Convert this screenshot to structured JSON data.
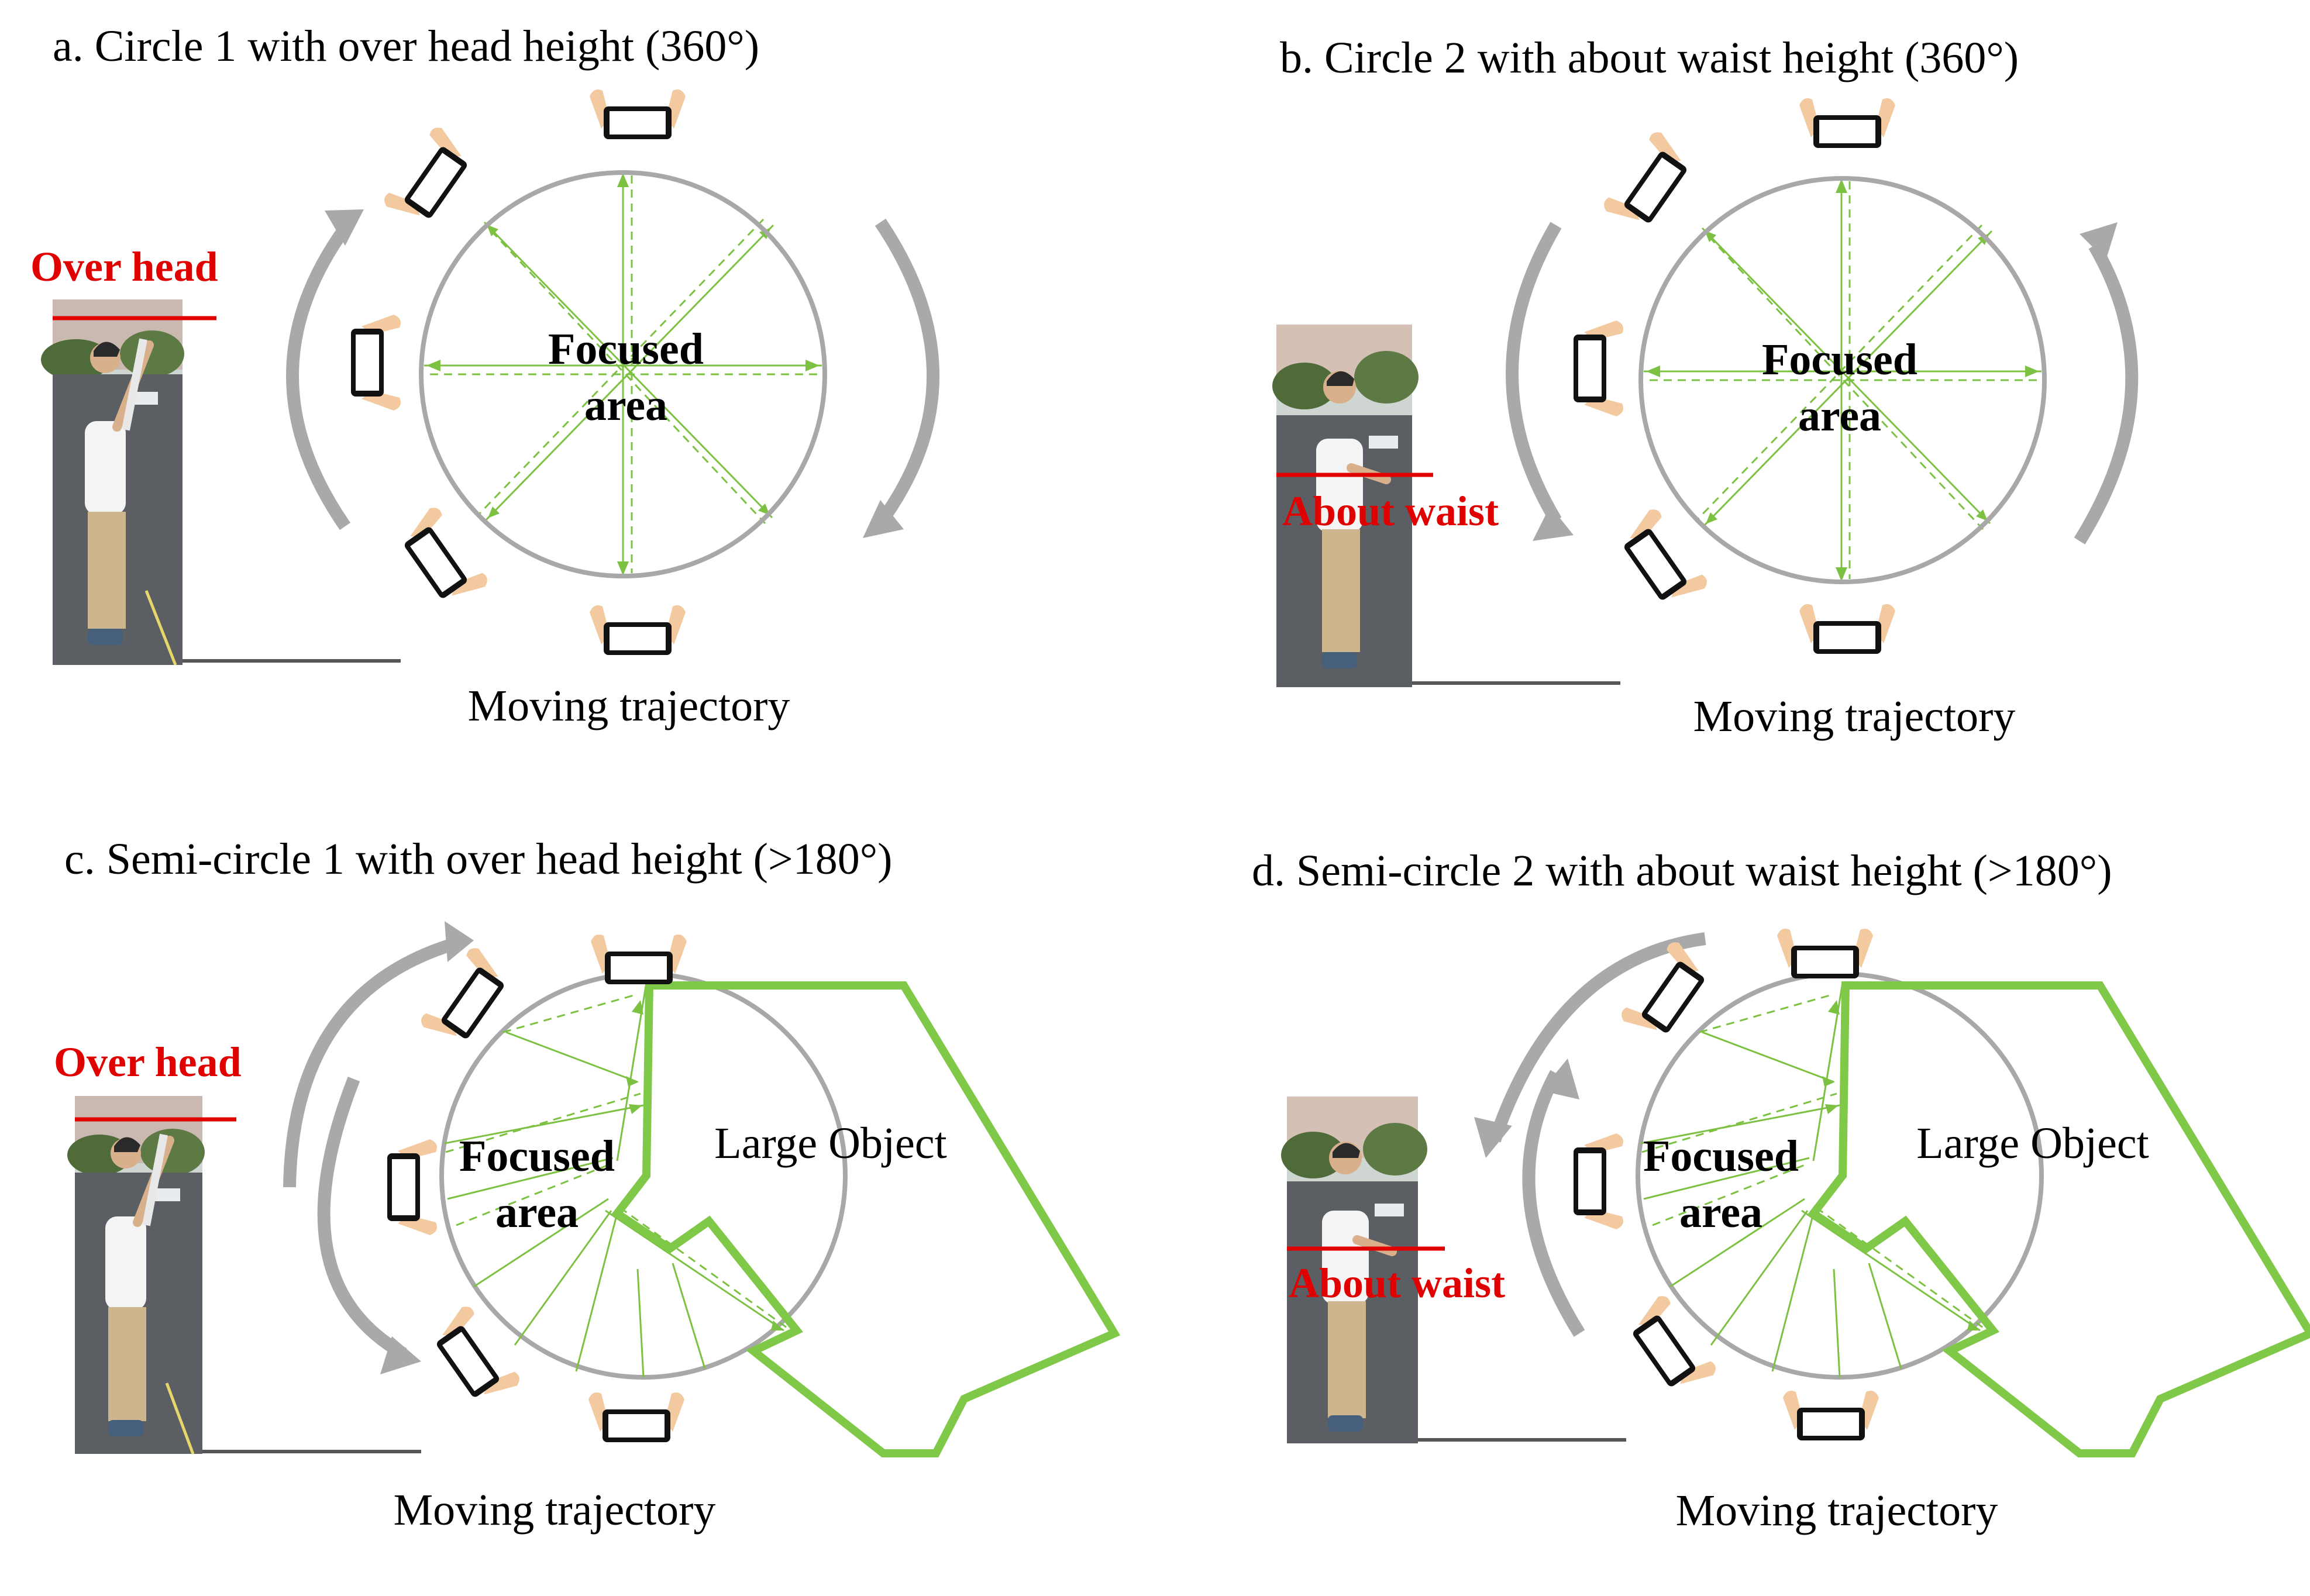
{
  "colors": {
    "ray": "#7dc143",
    "object_outline": "#80c848",
    "circle": "#a8a8a8",
    "arrow": "#a9a9a9",
    "height_mark": "#e00000",
    "ground": "#555555",
    "skin": "#f3c9a0",
    "phone": "#111111"
  },
  "icons": {
    "phone": "smartphone-in-hands-icon",
    "arrow": "curved-arrow-icon",
    "person": "person-photo"
  },
  "panels": [
    {
      "id": "a",
      "caption": "a. Circle 1 with over head height (360°)",
      "height_label": "Over head",
      "height_mode": "overhead",
      "focused_line1": "Focused",
      "focused_line2": "area",
      "trajectory_label": "Moving trajectory",
      "scan_type": "full-circle",
      "arrow_direction": "clockwise",
      "large_object_label": ""
    },
    {
      "id": "b",
      "caption": "b. Circle 2 with about waist height (360°)",
      "height_label": "About waist",
      "height_mode": "waist",
      "focused_line1": "Focused",
      "focused_line2": "area",
      "trajectory_label": "Moving trajectory",
      "scan_type": "full-circle",
      "arrow_direction": "counterclockwise",
      "large_object_label": ""
    },
    {
      "id": "c",
      "caption": "c. Semi-circle 1 with over head height (>180°)",
      "height_label": "Over head",
      "height_mode": "overhead",
      "focused_line1": "Focused",
      "focused_line2": "area",
      "trajectory_label": "Moving trajectory",
      "scan_type": "semi-circle",
      "arrow_direction": "clockwise",
      "large_object_label": "Large Object"
    },
    {
      "id": "d",
      "caption": "d. Semi-circle 2 with about waist height (>180°)",
      "height_label": "About waist",
      "height_mode": "waist",
      "focused_line1": "Focused",
      "focused_line2": "area",
      "trajectory_label": "Moving trajectory",
      "scan_type": "semi-circle",
      "arrow_direction": "counterclockwise",
      "large_object_label": "Large Object"
    }
  ]
}
